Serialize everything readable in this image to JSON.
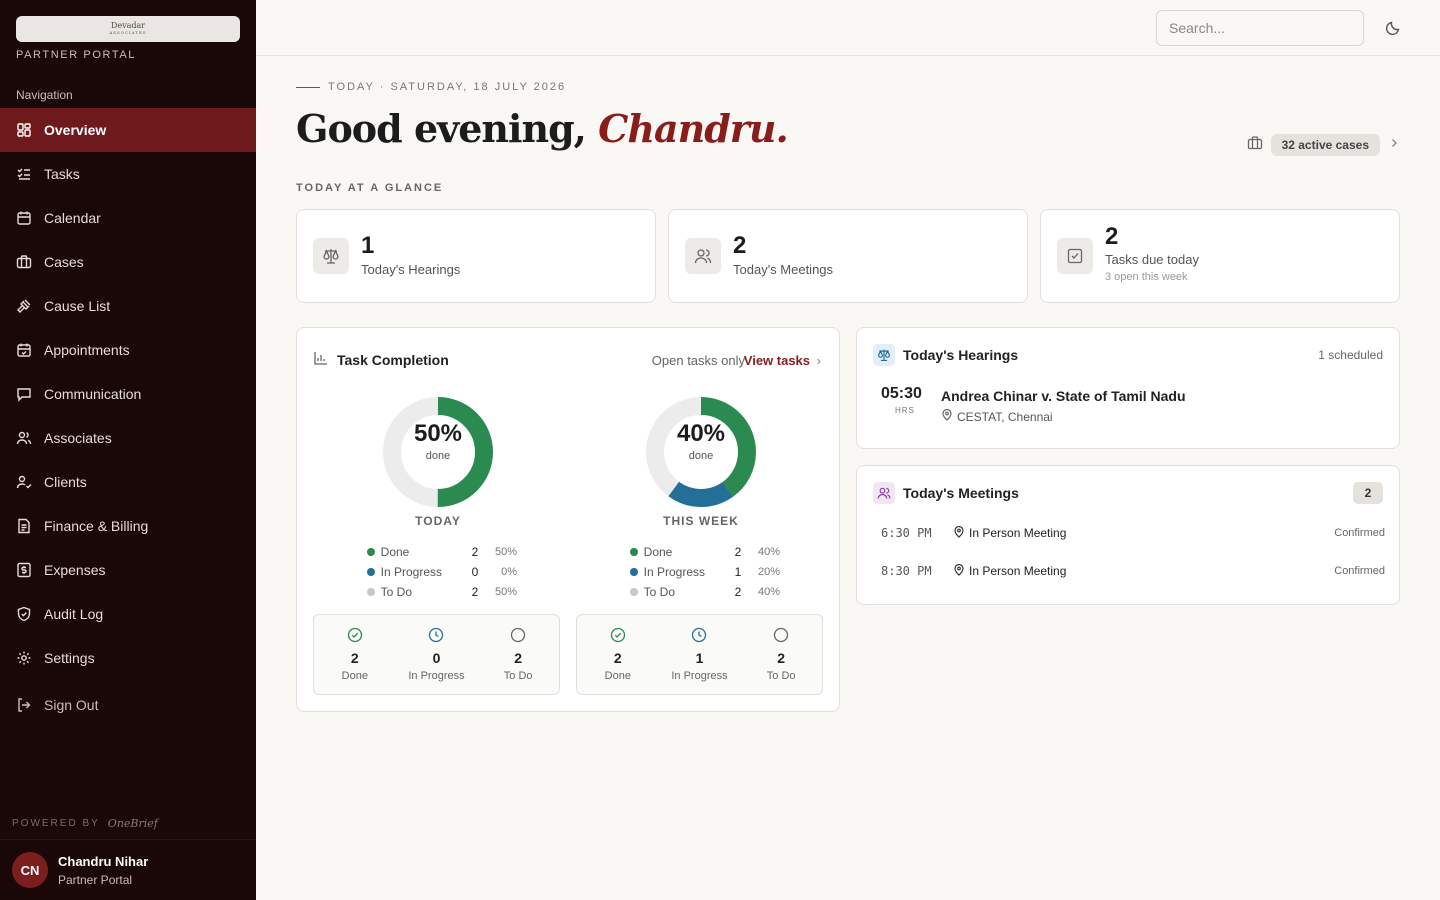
{
  "sidebar": {
    "logo_line1": "Devadar",
    "logo_line2": "ASSOCIATES",
    "portal_label": "PARTNER PORTAL",
    "nav_heading": "Navigation",
    "items": [
      {
        "label": "Overview",
        "icon": "grid-icon"
      },
      {
        "label": "Tasks",
        "icon": "list-check-icon"
      },
      {
        "label": "Calendar",
        "icon": "calendar-icon"
      },
      {
        "label": "Cases",
        "icon": "briefcase-icon"
      },
      {
        "label": "Cause List",
        "icon": "gavel-icon"
      },
      {
        "label": "Appointments",
        "icon": "calendar-check-icon"
      },
      {
        "label": "Communication",
        "icon": "message-icon"
      },
      {
        "label": "Associates",
        "icon": "users-icon"
      },
      {
        "label": "Clients",
        "icon": "user-check-icon"
      },
      {
        "label": "Finance & Billing",
        "icon": "receipt-icon"
      },
      {
        "label": "Expenses",
        "icon": "dollar-icon"
      },
      {
        "label": "Audit Log",
        "icon": "shield-icon"
      },
      {
        "label": "Settings",
        "icon": "gear-icon"
      }
    ],
    "signout": "Sign Out",
    "powered_by": "POWERED BY",
    "powered_brand": "OneBrief",
    "user": {
      "initials": "CN",
      "name": "Chandru Nihar",
      "role": "Partner Portal"
    }
  },
  "topbar": {
    "search_placeholder": "Search..."
  },
  "main": {
    "dateline": "TODAY · SATURDAY, 18 JULY 2026",
    "greeting": "Good evening,",
    "greeting_name": "Chandru.",
    "active_cases": "32 active cases",
    "glance": "TODAY AT A GLANCE",
    "stats": [
      {
        "value": "1",
        "label": "Today's Hearings",
        "sub": ""
      },
      {
        "value": "2",
        "label": "Today's Meetings",
        "sub": ""
      },
      {
        "value": "2",
        "label": "Tasks due today",
        "sub": "3 open this week"
      }
    ]
  },
  "task_completion": {
    "title": "Task Completion",
    "open_only": "Open tasks only",
    "view_tasks": "View tasks",
    "done_word": "done",
    "periods": [
      {
        "label": "TODAY",
        "pct": "50%",
        "done_fraction": 0.5,
        "inprog_fraction": 0,
        "legend": [
          {
            "name": "Done",
            "value": "2",
            "pct": "50%"
          },
          {
            "name": "In Progress",
            "value": "0",
            "pct": "0%"
          },
          {
            "name": "To Do",
            "value": "2",
            "pct": "50%"
          }
        ],
        "counts": [
          {
            "value": "2",
            "label": "Done"
          },
          {
            "value": "0",
            "label": "In Progress"
          },
          {
            "value": "2",
            "label": "To Do"
          }
        ]
      },
      {
        "label": "THIS WEEK",
        "pct": "40%",
        "done_fraction": 0.4,
        "inprog_fraction": 0.2,
        "legend": [
          {
            "name": "Done",
            "value": "2",
            "pct": "40%"
          },
          {
            "name": "In Progress",
            "value": "1",
            "pct": "20%"
          },
          {
            "name": "To Do",
            "value": "2",
            "pct": "40%"
          }
        ],
        "counts": [
          {
            "value": "2",
            "label": "Done"
          },
          {
            "value": "1",
            "label": "In Progress"
          },
          {
            "value": "2",
            "label": "To Do"
          }
        ]
      }
    ],
    "colors": {
      "done": "#2a8a4f",
      "in_progress": "#236f97",
      "todo": "#c8c8c8",
      "track": "#ececec"
    }
  },
  "hearings": {
    "title": "Today's Hearings",
    "meta": "1 scheduled",
    "items": [
      {
        "time": "05:30",
        "unit": "HRS",
        "case": "Andrea Chinar v. State of Tamil Nadu",
        "location": "CESTAT, Chennai"
      }
    ]
  },
  "meetings": {
    "title": "Today's Meetings",
    "count": "2",
    "items": [
      {
        "time": "6:30 PM",
        "title": "In Person Meeting",
        "status": "Confirmed"
      },
      {
        "time": "8:30 PM",
        "title": "In Person Meeting",
        "status": "Confirmed"
      }
    ]
  }
}
